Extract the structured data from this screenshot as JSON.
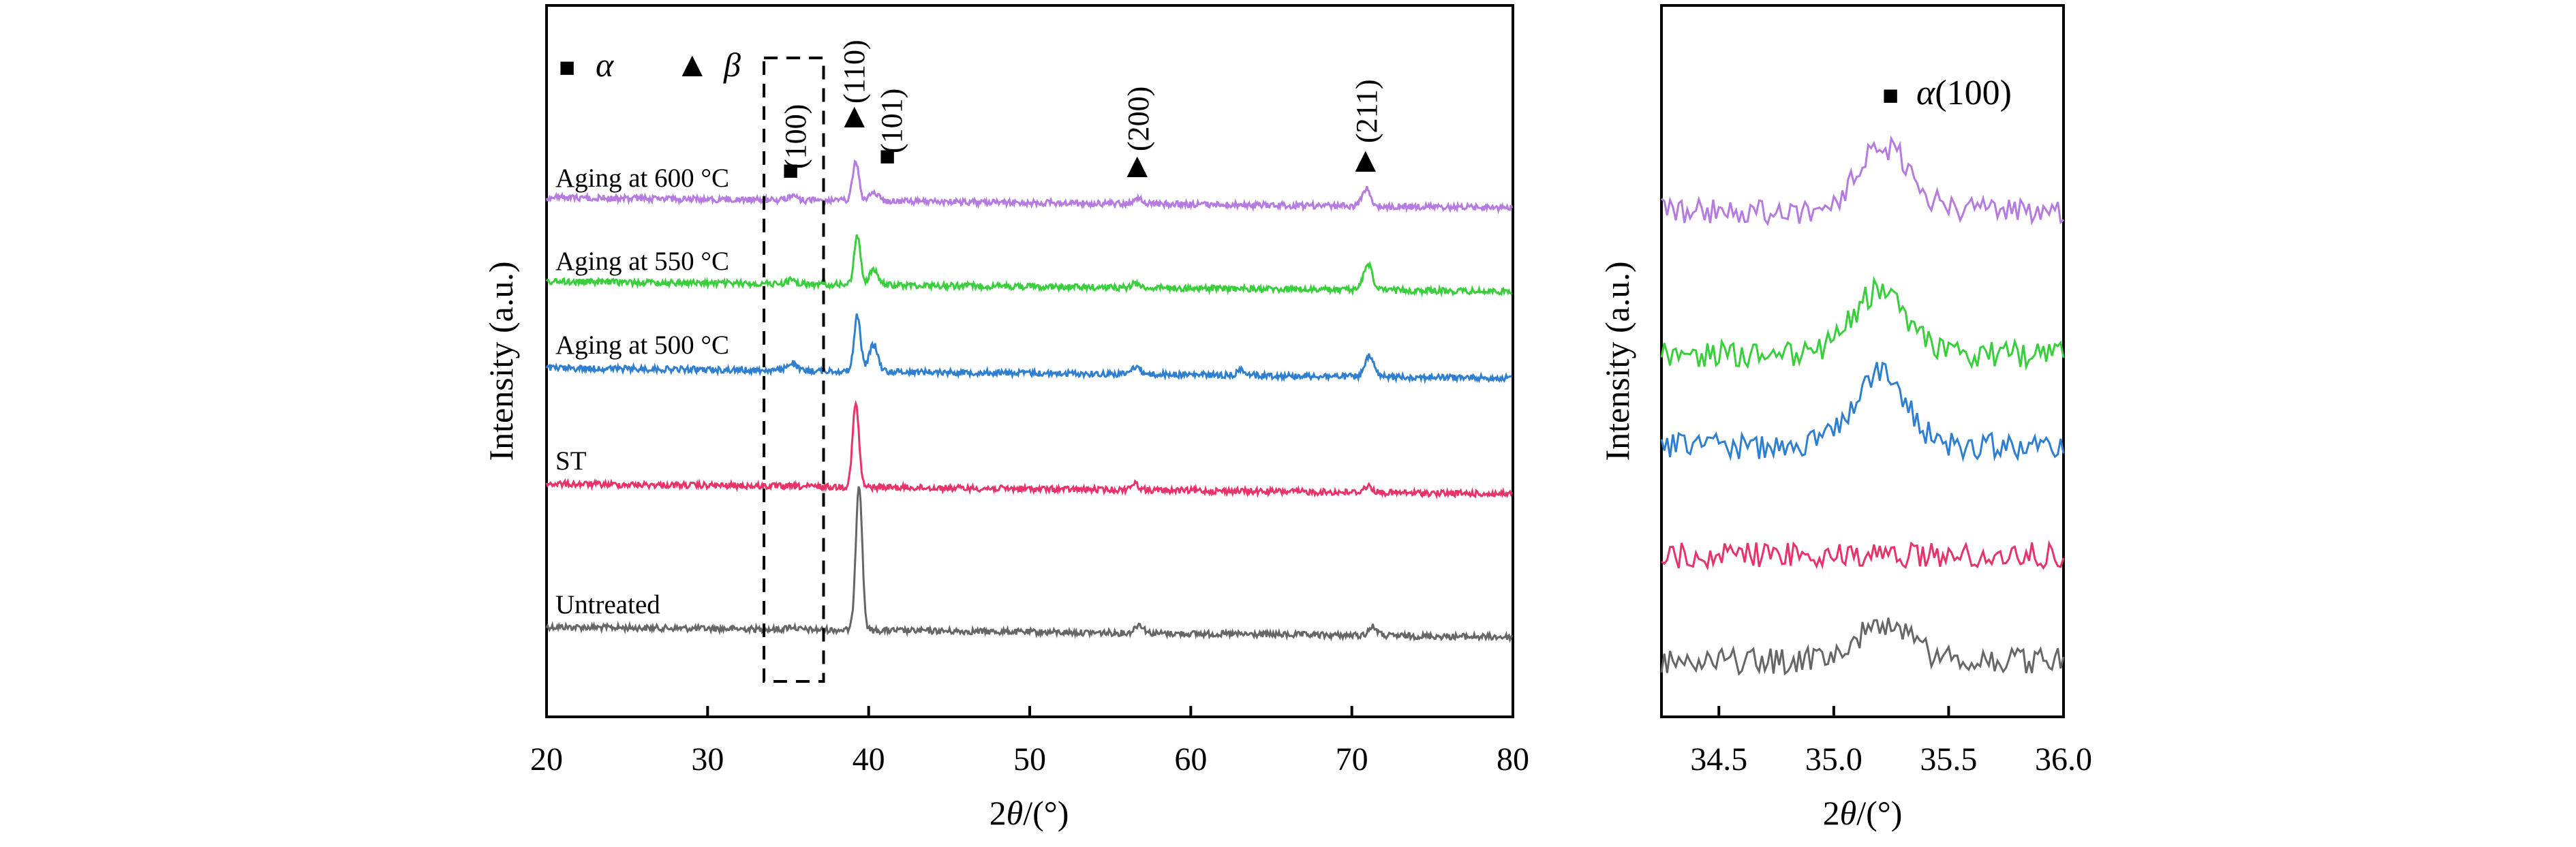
{
  "colors": {
    "untreated": "#666666",
    "st": "#e8336a",
    "aging500": "#2f7fd1",
    "aging550": "#39cf3c",
    "aging600": "#b57be0"
  },
  "legend": {
    "alpha_symbol": "■",
    "alpha_label": "α",
    "beta_symbol": "▲",
    "beta_label": "β"
  },
  "chart_data": [
    {
      "type": "line",
      "title": "",
      "xlabel_prefix": "2",
      "xlabel_theta": "θ",
      "xlabel_suffix": "/(°)",
      "ylabel": "Intensity (a.u.)",
      "xlim": [
        20,
        80
      ],
      "xticks": [
        "20",
        "30",
        "40",
        "50",
        "60",
        "70",
        "80"
      ],
      "series": [
        {
          "name": "Untreated",
          "color_key": "untreated",
          "peaks": [
            [
              35.2,
              0.02
            ],
            [
              39.4,
              1.0
            ],
            [
              56.8,
              0.06
            ],
            [
              71.3,
              0.06
            ]
          ]
        },
        {
          "name": "ST",
          "color_key": "st",
          "peaks": [
            [
              39.2,
              0.66
            ],
            [
              56.5,
              0.05
            ],
            [
              71.0,
              0.05
            ]
          ]
        },
        {
          "name": "Aging at 500 °C",
          "color_key": "aging500",
          "peaks": [
            [
              35.2,
              0.07
            ],
            [
              39.3,
              0.5
            ],
            [
              40.3,
              0.24
            ],
            [
              56.6,
              0.07
            ],
            [
              63.2,
              0.05
            ],
            [
              71.1,
              0.18
            ]
          ]
        },
        {
          "name": "Aging at 550 °C",
          "color_key": "aging550",
          "peaks": [
            [
              35.2,
              0.04
            ],
            [
              39.3,
              0.46
            ],
            [
              40.3,
              0.14
            ],
            [
              56.6,
              0.04
            ],
            [
              71.0,
              0.25
            ]
          ]
        },
        {
          "name": "Aging at 600 °C",
          "color_key": "aging600",
          "peaks": [
            [
              35.2,
              0.05
            ],
            [
              39.2,
              0.42
            ],
            [
              40.3,
              0.1
            ],
            [
              56.7,
              0.06
            ],
            [
              70.9,
              0.19
            ]
          ]
        }
      ],
      "peak_annotations": [
        {
          "symbol": "■",
          "label": "(100)",
          "x": 35.2,
          "phase": "alpha"
        },
        {
          "symbol": "▲",
          "label": "(110)",
          "x": 39.2,
          "phase": "beta"
        },
        {
          "symbol": "■",
          "label": "(101)",
          "x": 41.2,
          "phase": "alpha"
        },
        {
          "symbol": "▲",
          "label": "(200)",
          "x": 56.7,
          "phase": "beta"
        },
        {
          "symbol": "▲",
          "label": "(211)",
          "x": 71.0,
          "phase": "beta"
        }
      ],
      "highlight_box_x": [
        33.5,
        37.2
      ]
    },
    {
      "type": "line",
      "title": "",
      "xlabel_prefix": "2",
      "xlabel_theta": "θ",
      "xlabel_suffix": "/(°)",
      "ylabel": "Intensity (a.u.)",
      "xlim": [
        34.25,
        36.0
      ],
      "xticks": [
        "34.5",
        "35.0",
        "35.5",
        "36.0"
      ],
      "annotation_symbol": "■",
      "annotation_greek": "α",
      "annotation_text": "(100)",
      "series": [
        {
          "name": "Untreated",
          "color_key": "untreated",
          "peak_center": 35.22,
          "peak_height": 0.35
        },
        {
          "name": "ST",
          "color_key": "st",
          "peak_center": 35.2,
          "peak_height": 0.0
        },
        {
          "name": "Aging at 500 °C",
          "color_key": "aging500",
          "peak_center": 35.2,
          "peak_height": 1.0
        },
        {
          "name": "Aging at 550 °C",
          "color_key": "aging550",
          "peak_center": 35.2,
          "peak_height": 0.85
        },
        {
          "name": "Aging at 600 °C",
          "color_key": "aging600",
          "peak_center": 35.22,
          "peak_height": 0.8
        }
      ]
    }
  ]
}
